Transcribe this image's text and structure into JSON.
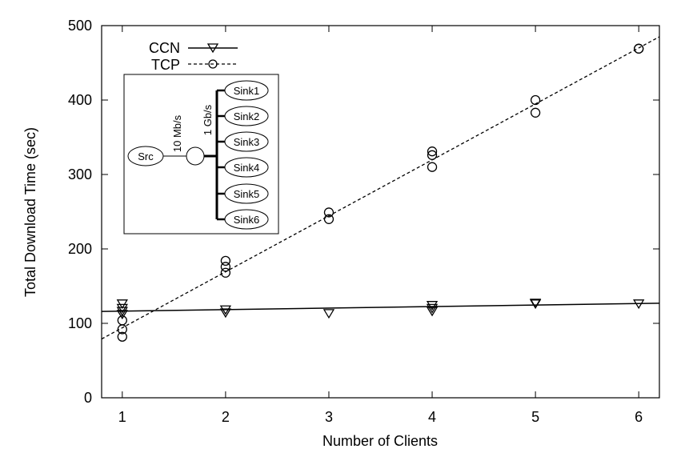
{
  "chart_data": {
    "type": "scatter",
    "title": "",
    "xlabel": "Number of Clients",
    "ylabel": "Total Download Time (sec)",
    "xlim": [
      0.8,
      6.2
    ],
    "ylim": [
      0,
      500
    ],
    "x_ticks": [
      1,
      2,
      3,
      4,
      5,
      6
    ],
    "y_ticks": [
      0,
      100,
      200,
      300,
      400,
      500
    ],
    "grid": false,
    "legend_position": "top-left",
    "series": [
      {
        "name": "CCN",
        "marker": "triangle-down",
        "line_style": "solid",
        "color": "#000000",
        "points": [
          [
            1,
            126
          ],
          [
            1,
            120
          ],
          [
            1,
            116
          ],
          [
            1,
            112
          ],
          [
            2,
            118
          ],
          [
            2,
            114
          ],
          [
            3,
            113
          ],
          [
            4,
            124
          ],
          [
            4,
            120
          ],
          [
            4,
            116
          ],
          [
            5,
            127
          ],
          [
            5,
            126
          ],
          [
            6,
            126
          ]
        ],
        "fit": {
          "x": [
            0.8,
            6.2
          ],
          "y": [
            116,
            127
          ]
        }
      },
      {
        "name": "TCP",
        "marker": "circle",
        "line_style": "dashed",
        "color": "#000000",
        "points": [
          [
            1,
            104
          ],
          [
            1,
            92
          ],
          [
            1,
            82
          ],
          [
            2,
            184
          ],
          [
            2,
            176
          ],
          [
            2,
            168
          ],
          [
            3,
            249
          ],
          [
            3,
            240
          ],
          [
            4,
            331
          ],
          [
            4,
            326
          ],
          [
            4,
            310
          ],
          [
            5,
            400
          ],
          [
            5,
            383
          ],
          [
            6,
            469
          ],
          [
            6,
            469
          ]
        ],
        "fit": {
          "x": [
            0.8,
            6.2
          ],
          "y": [
            79,
            485
          ]
        }
      }
    ],
    "inset": {
      "source_label": "Src",
      "link1_label": "10 Mb/s",
      "link2_label": "1 Gb/s",
      "sinks": [
        "Sink1",
        "Sink2",
        "Sink3",
        "Sink4",
        "Sink5",
        "Sink6"
      ]
    }
  }
}
